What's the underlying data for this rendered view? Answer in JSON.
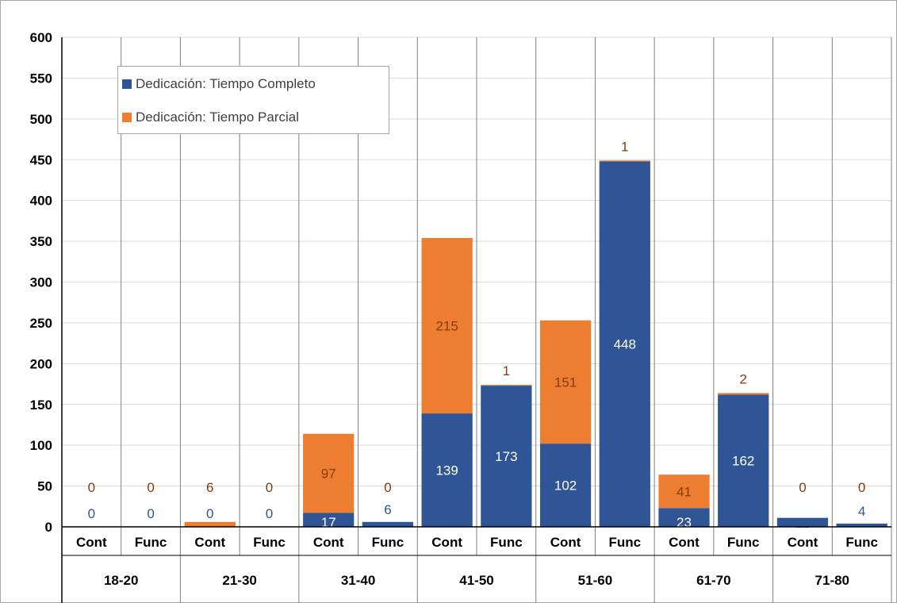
{
  "chart_data": {
    "type": "bar",
    "stacked": true,
    "groups": [
      "18-20",
      "21-30",
      "31-40",
      "41-50",
      "51-60",
      "61-70",
      "71-80"
    ],
    "subcategories": [
      "Cont",
      "Func"
    ],
    "categories": [
      "18-20 Cont",
      "18-20 Func",
      "21-30 Cont",
      "21-30 Func",
      "31-40 Cont",
      "31-40 Func",
      "41-50 Cont",
      "41-50 Func",
      "51-60 Cont",
      "51-60 Func",
      "61-70 Cont",
      "61-70 Func",
      "71-80 Cont",
      "71-80 Func"
    ],
    "series": [
      {
        "name": "Dedicación: Tiempo Completo",
        "color": "#2f5597",
        "values": [
          0,
          0,
          0,
          0,
          17,
          6,
          139,
          173,
          102,
          448,
          23,
          162,
          11,
          4
        ],
        "labels": [
          "0",
          "0",
          "0",
          "0",
          "17",
          "6",
          "139",
          "173",
          "102",
          "448",
          "23",
          "162",
          "11",
          "4"
        ]
      },
      {
        "name": "Dedicación: Tiempo Parcial",
        "color": "#ed7d31",
        "values": [
          0,
          0,
          6,
          0,
          97,
          0,
          215,
          1,
          151,
          1,
          41,
          2,
          0,
          0
        ],
        "labels": [
          "0",
          "0",
          "6",
          "0",
          "97",
          "0",
          "215",
          "1",
          "151",
          "1",
          "41",
          "2",
          "0",
          "0"
        ]
      }
    ],
    "ylim": [
      0,
      600
    ],
    "yticks": [
      "0",
      "50",
      "100",
      "150",
      "200",
      "250",
      "300",
      "350",
      "400",
      "450",
      "500",
      "550",
      "600"
    ],
    "grid": true,
    "legend_position": "top-left"
  },
  "legend": {
    "item1": "Dedicación: Tiempo Completo",
    "item2": "Dedicación: Tiempo Parcial"
  }
}
